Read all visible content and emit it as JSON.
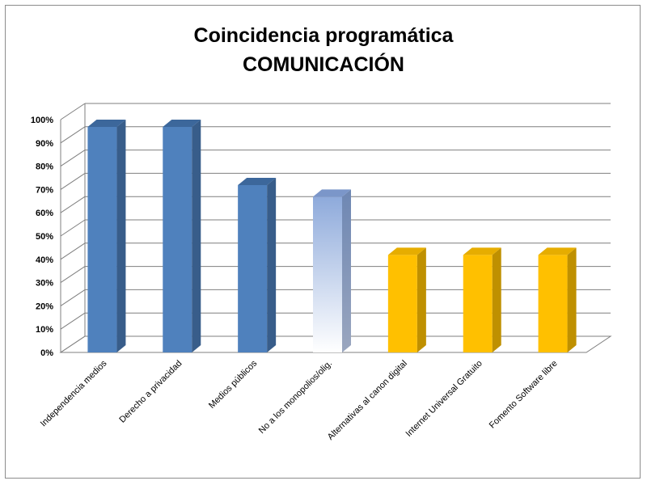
{
  "chart_data": {
    "type": "bar",
    "title_line1": "Coincidencia programática",
    "title_line2": "COMUNICACIÓN",
    "xlabel": "",
    "ylabel": "",
    "ylim": [
      0,
      100
    ],
    "y_ticks": [
      "0%",
      "10%",
      "20%",
      "30%",
      "40%",
      "50%",
      "60%",
      "70%",
      "80%",
      "90%",
      "100%"
    ],
    "categories": [
      "Independencia medios",
      "Derecho a privacidad",
      "Medios públicos",
      "No a los monopolios/olig.",
      "Alternativas al canon digital",
      "Internet Universal Gratuito",
      "Fomento Software libre"
    ],
    "values": [
      100,
      100,
      75,
      70,
      45,
      45,
      45
    ],
    "bar_colors": [
      "#4f81bd",
      "#4f81bd",
      "#4f81bd",
      "gradient-light-blue",
      "#ffc000",
      "#ffc000",
      "#ffc000"
    ],
    "grid": true,
    "legend": "none"
  }
}
